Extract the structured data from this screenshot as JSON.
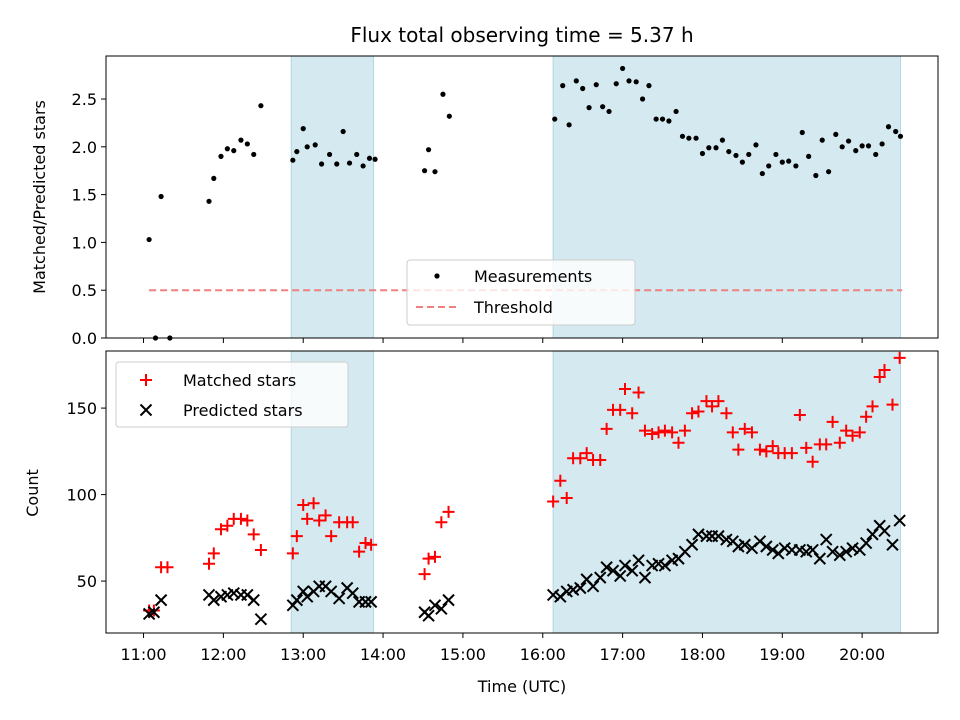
{
  "chart_data": {
    "title": "Flux total observing time = 5.37 h",
    "xlabel": "Time (UTC)",
    "x_ticks": [
      "11:00",
      "12:00",
      "13:00",
      "14:00",
      "15:00",
      "16:00",
      "17:00",
      "18:00",
      "19:00",
      "20:00"
    ],
    "observing_spans": [
      [
        12.85,
        13.88
      ],
      [
        16.13,
        20.48
      ]
    ],
    "colors": {
      "span": "#d4eaf0",
      "span_edge": "#add8e6",
      "measurement": "#000000",
      "threshold": "#f08080",
      "matched": "#ff0000",
      "predicted": "#000000"
    },
    "top": {
      "type": "scatter",
      "ylabel": "Matched/Predicted stars",
      "ylim": [
        0,
        2.95
      ],
      "yticks": [
        "0.0",
        "0.5",
        "1.0",
        "1.5",
        "2.0",
        "2.5"
      ],
      "legend_position": "lower-center",
      "series": [
        {
          "name": "Measurements",
          "points": [
            [
              11.07,
              1.03
            ],
            [
              11.15,
              0.0
            ],
            [
              11.22,
              1.48
            ],
            [
              11.33,
              0.0
            ],
            [
              11.82,
              1.43
            ],
            [
              11.88,
              1.67
            ],
            [
              11.97,
              1.9
            ],
            [
              12.05,
              1.98
            ],
            [
              12.13,
              1.96
            ],
            [
              12.22,
              2.07
            ],
            [
              12.3,
              2.03
            ],
            [
              12.38,
              1.92
            ],
            [
              12.47,
              2.43
            ],
            [
              12.87,
              1.86
            ],
            [
              12.92,
              1.95
            ],
            [
              13.0,
              2.19
            ],
            [
              13.05,
              2.0
            ],
            [
              13.15,
              2.02
            ],
            [
              13.23,
              1.82
            ],
            [
              13.33,
              1.92
            ],
            [
              13.42,
              1.82
            ],
            [
              13.5,
              2.16
            ],
            [
              13.58,
              1.83
            ],
            [
              13.67,
              1.92
            ],
            [
              13.75,
              1.8
            ],
            [
              13.83,
              1.88
            ],
            [
              13.9,
              1.87
            ],
            [
              14.52,
              1.75
            ],
            [
              14.57,
              1.97
            ],
            [
              14.65,
              1.74
            ],
            [
              14.75,
              2.55
            ],
            [
              14.83,
              2.32
            ],
            [
              16.15,
              2.29
            ],
            [
              16.25,
              2.64
            ],
            [
              16.33,
              2.23
            ],
            [
              16.42,
              2.69
            ],
            [
              16.5,
              2.61
            ],
            [
              16.58,
              2.41
            ],
            [
              16.67,
              2.65
            ],
            [
              16.75,
              2.42
            ],
            [
              16.83,
              2.37
            ],
            [
              16.92,
              2.66
            ],
            [
              17.0,
              2.82
            ],
            [
              17.08,
              2.69
            ],
            [
              17.17,
              2.68
            ],
            [
              17.25,
              2.5
            ],
            [
              17.33,
              2.64
            ],
            [
              17.42,
              2.29
            ],
            [
              17.5,
              2.29
            ],
            [
              17.58,
              2.27
            ],
            [
              17.67,
              2.37
            ],
            [
              17.75,
              2.11
            ],
            [
              17.83,
              2.09
            ],
            [
              17.92,
              2.09
            ],
            [
              18.0,
              1.93
            ],
            [
              18.08,
              1.99
            ],
            [
              18.17,
              1.99
            ],
            [
              18.25,
              2.07
            ],
            [
              18.33,
              1.95
            ],
            [
              18.42,
              1.91
            ],
            [
              18.5,
              1.84
            ],
            [
              18.58,
              1.92
            ],
            [
              18.67,
              2.02
            ],
            [
              18.75,
              1.72
            ],
            [
              18.83,
              1.8
            ],
            [
              18.92,
              1.92
            ],
            [
              19.0,
              1.84
            ],
            [
              19.08,
              1.85
            ],
            [
              19.17,
              1.8
            ],
            [
              19.25,
              2.15
            ],
            [
              19.33,
              1.9
            ],
            [
              19.42,
              1.7
            ],
            [
              19.5,
              2.07
            ],
            [
              19.58,
              1.74
            ],
            [
              19.67,
              2.13
            ],
            [
              19.75,
              2.0
            ],
            [
              19.83,
              2.06
            ],
            [
              19.92,
              1.96
            ],
            [
              20.0,
              2.01
            ],
            [
              20.08,
              2.01
            ],
            [
              20.17,
              1.92
            ],
            [
              20.25,
              2.03
            ],
            [
              20.33,
              2.21
            ],
            [
              20.42,
              2.16
            ],
            [
              20.48,
              2.11
            ]
          ]
        }
      ],
      "threshold": {
        "name": "Threshold",
        "value": 0.5,
        "x_range": [
          11.07,
          20.5
        ]
      }
    },
    "bottom": {
      "type": "scatter",
      "ylabel": "Count",
      "ylim": [
        20,
        183
      ],
      "yticks": [
        "50",
        "100",
        "150"
      ],
      "legend_position": "upper-left",
      "series": [
        {
          "name": "Matched stars",
          "marker": "+",
          "points": [
            [
              11.07,
              33
            ],
            [
              11.13,
              33
            ],
            [
              11.22,
              58
            ],
            [
              11.3,
              58
            ],
            [
              11.82,
              60
            ],
            [
              11.88,
              66
            ],
            [
              11.97,
              80
            ],
            [
              12.05,
              82
            ],
            [
              12.13,
              86
            ],
            [
              12.22,
              86
            ],
            [
              12.3,
              85
            ],
            [
              12.38,
              77
            ],
            [
              12.47,
              68
            ],
            [
              12.87,
              66
            ],
            [
              12.92,
              76
            ],
            [
              13.0,
              94
            ],
            [
              13.05,
              86
            ],
            [
              13.13,
              95
            ],
            [
              13.2,
              85
            ],
            [
              13.28,
              88
            ],
            [
              13.35,
              76
            ],
            [
              13.45,
              84
            ],
            [
              13.55,
              84
            ],
            [
              13.62,
              84
            ],
            [
              13.7,
              67
            ],
            [
              13.78,
              72
            ],
            [
              13.85,
              71
            ],
            [
              14.52,
              54
            ],
            [
              14.57,
              63
            ],
            [
              14.65,
              64
            ],
            [
              14.73,
              84
            ],
            [
              14.82,
              90
            ],
            [
              16.13,
              96
            ],
            [
              16.22,
              108
            ],
            [
              16.3,
              98
            ],
            [
              16.38,
              121
            ],
            [
              16.47,
              121
            ],
            [
              16.55,
              124
            ],
            [
              16.63,
              120
            ],
            [
              16.72,
              120
            ],
            [
              16.8,
              138
            ],
            [
              16.88,
              149
            ],
            [
              16.97,
              149
            ],
            [
              17.03,
              161
            ],
            [
              17.12,
              147
            ],
            [
              17.2,
              159
            ],
            [
              17.28,
              137
            ],
            [
              17.37,
              135
            ],
            [
              17.45,
              136
            ],
            [
              17.53,
              137
            ],
            [
              17.62,
              136
            ],
            [
              17.7,
              130
            ],
            [
              17.78,
              137
            ],
            [
              17.87,
              147
            ],
            [
              17.95,
              148
            ],
            [
              18.05,
              154
            ],
            [
              18.12,
              151
            ],
            [
              18.2,
              154
            ],
            [
              18.3,
              147
            ],
            [
              18.38,
              136
            ],
            [
              18.45,
              126
            ],
            [
              18.53,
              138
            ],
            [
              18.62,
              136
            ],
            [
              18.72,
              126
            ],
            [
              18.8,
              125
            ],
            [
              18.88,
              128
            ],
            [
              18.95,
              124
            ],
            [
              19.03,
              124
            ],
            [
              19.12,
              124
            ],
            [
              19.22,
              146
            ],
            [
              19.3,
              127
            ],
            [
              19.38,
              119
            ],
            [
              19.47,
              129
            ],
            [
              19.55,
              129
            ],
            [
              19.63,
              142
            ],
            [
              19.72,
              130
            ],
            [
              19.8,
              137
            ],
            [
              19.88,
              134
            ],
            [
              19.97,
              136
            ],
            [
              20.05,
              145
            ],
            [
              20.13,
              151
            ],
            [
              20.22,
              168
            ],
            [
              20.28,
              172
            ],
            [
              20.38,
              152
            ],
            [
              20.47,
              179
            ]
          ]
        },
        {
          "name": "Predicted stars",
          "marker": "x",
          "points": [
            [
              11.07,
              31
            ],
            [
              11.13,
              32
            ],
            [
              11.22,
              39
            ],
            [
              11.82,
              42
            ],
            [
              11.88,
              39
            ],
            [
              11.97,
              41
            ],
            [
              12.05,
              42
            ],
            [
              12.13,
              43
            ],
            [
              12.22,
              42
            ],
            [
              12.3,
              42
            ],
            [
              12.38,
              39
            ],
            [
              12.47,
              28
            ],
            [
              12.87,
              36
            ],
            [
              12.92,
              39
            ],
            [
              13.0,
              44
            ],
            [
              13.05,
              41
            ],
            [
              13.13,
              44
            ],
            [
              13.2,
              47
            ],
            [
              13.28,
              47
            ],
            [
              13.35,
              44
            ],
            [
              13.45,
              40
            ],
            [
              13.55,
              46
            ],
            [
              13.62,
              43
            ],
            [
              13.7,
              38
            ],
            [
              13.78,
              38
            ],
            [
              13.85,
              38
            ],
            [
              14.52,
              32
            ],
            [
              14.57,
              30
            ],
            [
              14.65,
              36
            ],
            [
              14.73,
              34
            ],
            [
              14.82,
              39
            ],
            [
              16.13,
              42
            ],
            [
              16.22,
              41
            ],
            [
              16.3,
              44
            ],
            [
              16.38,
              45
            ],
            [
              16.47,
              46
            ],
            [
              16.55,
              51
            ],
            [
              16.63,
              47
            ],
            [
              16.72,
              52
            ],
            [
              16.8,
              58
            ],
            [
              16.88,
              56
            ],
            [
              16.97,
              53
            ],
            [
              17.03,
              59
            ],
            [
              17.12,
              56
            ],
            [
              17.2,
              62
            ],
            [
              17.28,
              52
            ],
            [
              17.37,
              59
            ],
            [
              17.45,
              60
            ],
            [
              17.53,
              59
            ],
            [
              17.62,
              62
            ],
            [
              17.7,
              63
            ],
            [
              17.78,
              67
            ],
            [
              17.87,
              71
            ],
            [
              17.95,
              77
            ],
            [
              18.05,
              76
            ],
            [
              18.12,
              76
            ],
            [
              18.2,
              76
            ],
            [
              18.3,
              74
            ],
            [
              18.38,
              73
            ],
            [
              18.45,
              70
            ],
            [
              18.53,
              71
            ],
            [
              18.62,
              69
            ],
            [
              18.72,
              73
            ],
            [
              18.8,
              70
            ],
            [
              18.88,
              68
            ],
            [
              18.95,
              66
            ],
            [
              19.03,
              69
            ],
            [
              19.12,
              68
            ],
            [
              19.22,
              68
            ],
            [
              19.3,
              67
            ],
            [
              19.38,
              68
            ],
            [
              19.47,
              63
            ],
            [
              19.55,
              74
            ],
            [
              19.63,
              67
            ],
            [
              19.72,
              65
            ],
            [
              19.8,
              67
            ],
            [
              19.88,
              69
            ],
            [
              19.97,
              68
            ],
            [
              20.05,
              72
            ],
            [
              20.13,
              77
            ],
            [
              20.22,
              82
            ],
            [
              20.28,
              79
            ],
            [
              20.38,
              71
            ],
            [
              20.47,
              85
            ]
          ]
        }
      ]
    }
  }
}
